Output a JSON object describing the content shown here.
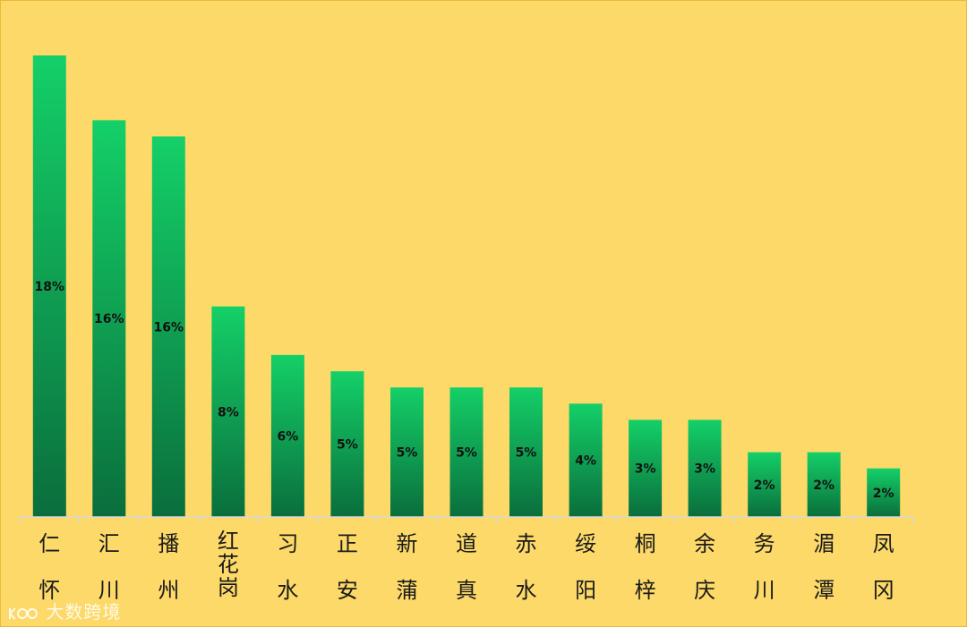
{
  "chart_data": {
    "type": "bar",
    "categories": [
      "仁怀",
      "汇川",
      "播州",
      "红花岗",
      "习水",
      "正安",
      "新蒲",
      "道真",
      "赤水",
      "绥阳",
      "桐梓",
      "余庆",
      "务川",
      "湄潭",
      "凤冈"
    ],
    "category_lines": [
      [
        "仁",
        "怀"
      ],
      [
        "汇",
        "川"
      ],
      [
        "播",
        "州"
      ],
      [
        "红",
        "花",
        "岗"
      ],
      [
        "习",
        "水"
      ],
      [
        "正",
        "安"
      ],
      [
        "新",
        "蒲"
      ],
      [
        "道",
        "真"
      ],
      [
        "赤",
        "水"
      ],
      [
        "绥",
        "阳"
      ],
      [
        "桐",
        "梓"
      ],
      [
        "余",
        "庆"
      ],
      [
        "务",
        "川"
      ],
      [
        "湄",
        "潭"
      ],
      [
        "凤",
        "冈"
      ]
    ],
    "values": [
      18,
      16,
      16,
      8,
      6,
      5,
      5,
      5,
      5,
      4,
      3,
      3,
      2,
      2,
      2
    ],
    "bar_heights": [
      28.5,
      24.5,
      23.5,
      13.0,
      10.0,
      9.0,
      8.0,
      8.0,
      8.0,
      7.0,
      6.0,
      6.0,
      4.0,
      4.0,
      3.0
    ],
    "data_labels": [
      "18%",
      "16%",
      "16%",
      "8%",
      "6%",
      "5%",
      "5%",
      "5%",
      "5%",
      "4%",
      "3%",
      "3%",
      "2%",
      "2%",
      "2%"
    ],
    "ylim": [
      0,
      32
    ],
    "grid": false,
    "legend": "none",
    "colors": {
      "background": "#FCD968",
      "bar_top": "#14D068",
      "bar_bottom": "#0A6E3C",
      "axis": "#D9D9D9",
      "label": "#1a1a1a"
    }
  },
  "watermark": {
    "text": "大数跨境"
  }
}
